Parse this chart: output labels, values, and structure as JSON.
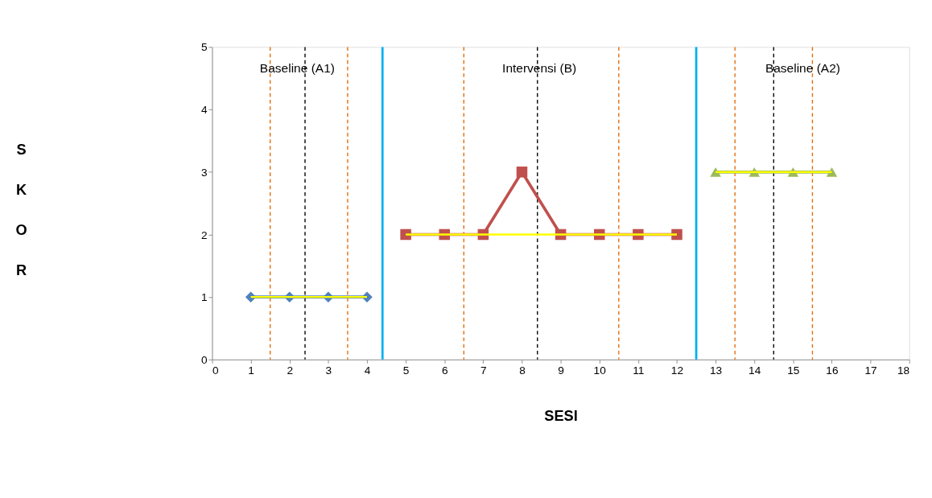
{
  "chart_data": {
    "type": "line",
    "xlabel": "SESI",
    "ylabel": "SKOR",
    "xlim": [
      0,
      18
    ],
    "xticks": [
      0,
      1,
      2,
      3,
      4,
      5,
      6,
      7,
      8,
      9,
      10,
      11,
      12,
      13,
      14,
      15,
      16,
      17,
      18
    ],
    "ylim": [
      0,
      5
    ],
    "yticks": [
      0,
      1,
      2,
      3,
      4,
      5
    ],
    "grid": false,
    "series": [
      {
        "color": "#4f81bd",
        "marker": "diamond",
        "x": [
          1,
          2,
          3,
          4
        ],
        "values": [
          1,
          1,
          1,
          1
        ]
      },
      {
        "color": "#c0504d",
        "marker": "square",
        "x": [
          5,
          6,
          7,
          8,
          9,
          10,
          11,
          12
        ],
        "values": [
          2,
          2,
          2,
          3,
          2,
          2,
          2,
          2
        ]
      },
      {
        "color": "#9bbb59",
        "marker": "triangle",
        "x": [
          13,
          14,
          15,
          16
        ],
        "values": [
          3,
          3,
          3,
          3
        ]
      },
      {
        "type": "line",
        "color": "#ffff00",
        "marker": "none",
        "x": [
          1,
          4
        ],
        "values": [
          1,
          1
        ]
      },
      {
        "type": "line",
        "color": "#ffff00",
        "marker": "none",
        "x": [
          5,
          12
        ],
        "values": [
          2,
          2
        ]
      },
      {
        "type": "line",
        "color": "#ffff00",
        "marker": "none",
        "x": [
          13,
          16
        ],
        "values": [
          3,
          3
        ]
      }
    ],
    "ref_lines": [
      {
        "axis": "x",
        "value": 4.4,
        "color": "#00b0f0",
        "line_style": "solid"
      },
      {
        "axis": "x",
        "value": 12.5,
        "color": "#00b0f0",
        "line_style": "solid"
      },
      {
        "axis": "x",
        "value": 2.4,
        "color": "#000000",
        "line_style": "dashed"
      },
      {
        "axis": "x",
        "value": 8.4,
        "color": "#000000",
        "line_style": "dashed"
      },
      {
        "axis": "x",
        "value": 14.5,
        "color": "#000000",
        "line_style": "dashed"
      },
      {
        "axis": "x",
        "value": 1.5,
        "color": "#e46c0a",
        "line_style": "dashed"
      },
      {
        "axis": "x",
        "value": 3.5,
        "color": "#e46c0a",
        "line_style": "dashed"
      },
      {
        "axis": "x",
        "value": 6.5,
        "color": "#e46c0a",
        "line_style": "dashed"
      },
      {
        "axis": "x",
        "value": 10.5,
        "color": "#e46c0a",
        "line_style": "dashed"
      },
      {
        "axis": "x",
        "value": 13.5,
        "color": "#e46c0a",
        "line_style": "dashed"
      },
      {
        "axis": "x",
        "value": 15.5,
        "color": "#e46c0a",
        "line_style": "dashed"
      }
    ],
    "annotations": [
      "Baseline (A1)",
      "Intervensi (B)",
      "Baseline (A2)"
    ]
  }
}
